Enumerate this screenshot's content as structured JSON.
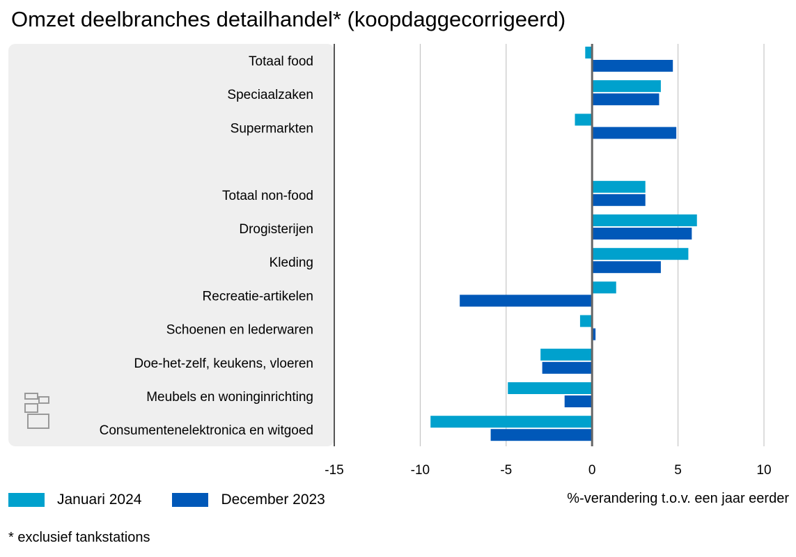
{
  "chart_data": {
    "type": "bar",
    "orientation": "horizontal",
    "title": "Omzet deelbranches detailhandel* (koopdaggecorrigeerd)",
    "xlabel": "%-verandering t.o.v. een jaar eerder",
    "xlim": [
      -15,
      10
    ],
    "xticks": [
      "-15",
      "-10",
      "-5",
      "0",
      "5",
      "10"
    ],
    "grid": true,
    "legend_position": "bottom-left",
    "categories": [
      "Totaal food",
      "Speciaalzaken",
      "Supermarkten",
      "",
      "Totaal non-food",
      "Drogisterijen",
      "Kleding",
      "Recreatie-artikelen",
      "Schoenen en lederwaren",
      "Doe-het-zelf, keukens, vloeren",
      "Meubels en woninginrichting",
      "Consumentenelektronica en witgoed"
    ],
    "series": [
      {
        "name": "Januari 2024",
        "color": "#00a1cd",
        "values": [
          -0.4,
          4.0,
          -1.0,
          null,
          3.1,
          6.1,
          5.6,
          1.4,
          -0.7,
          -3.0,
          -4.9,
          -9.4
        ]
      },
      {
        "name": "December 2023",
        "color": "#0058b8",
        "values": [
          4.7,
          3.9,
          4.9,
          null,
          3.1,
          5.8,
          4.0,
          -7.7,
          0.2,
          -2.9,
          -1.6,
          -5.9
        ]
      }
    ],
    "footnote": "* exclusief tankstations"
  }
}
